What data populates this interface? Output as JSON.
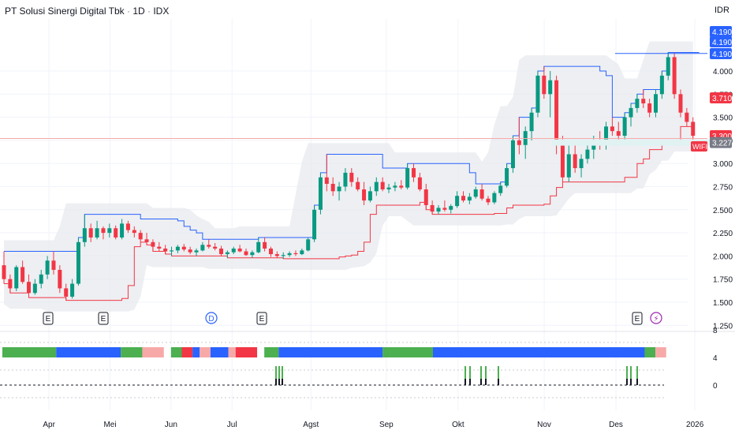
{
  "header": {
    "symbol": "PT Solusi Sinergi Digital Tbk",
    "interval": "1D",
    "exchange": "IDX",
    "separator": "·",
    "currency": "IDR"
  },
  "chart_data": {
    "type": "candlestick",
    "symbol": "WIFI",
    "y_ticks": [
      "4.000",
      "3.750",
      "3.500",
      "3.250",
      "3.000",
      "2.750",
      "2.500",
      "2.250",
      "2.000",
      "1.750",
      "1.500",
      "1.250"
    ],
    "y_tick_values": [
      4000,
      3750,
      3500,
      3250,
      3000,
      2750,
      2500,
      2250,
      2000,
      1750,
      1500,
      1250
    ],
    "ylim": [
      1250,
      4500
    ],
    "x_labels": [
      "Apr",
      "Mei",
      "Jun",
      "Jul",
      "Agst",
      "Sep",
      "Okt",
      "Nov",
      "Des",
      "2026"
    ],
    "price_tags": [
      {
        "label": "4.190",
        "value": 4190,
        "style": "blue"
      },
      {
        "label": "4.190",
        "value": 4190,
        "style": "blue"
      },
      {
        "label": "4.190",
        "value": 4190,
        "style": "blue"
      },
      {
        "label": "3.710",
        "value": 3710,
        "style": "red"
      },
      {
        "label": "3.300",
        "value": 3300,
        "style": "red"
      },
      {
        "label": "3.227",
        "value": 3227,
        "style": "gray"
      }
    ],
    "symbol_tag": "WIFI",
    "event_markers": [
      {
        "label": "E",
        "kind": "earnings"
      },
      {
        "label": "E",
        "kind": "earnings"
      },
      {
        "label": "D",
        "kind": "dividend"
      },
      {
        "label": "E",
        "kind": "earnings"
      },
      {
        "label": "E",
        "kind": "earnings"
      },
      {
        "label": "⚡",
        "kind": "upcoming"
      }
    ],
    "candles": [
      [
        1900,
        2050,
        1700,
        1750
      ],
      [
        1750,
        1800,
        1600,
        1650
      ],
      [
        1650,
        1900,
        1620,
        1880
      ],
      [
        1880,
        1950,
        1700,
        1720
      ],
      [
        1720,
        1800,
        1550,
        1600
      ],
      [
        1600,
        1750,
        1580,
        1700
      ],
      [
        1700,
        1850,
        1650,
        1800
      ],
      [
        1800,
        2000,
        1750,
        1950
      ],
      [
        1950,
        2050,
        1800,
        1850
      ],
      [
        1850,
        1900,
        1600,
        1650
      ],
      [
        1650,
        1700,
        1520,
        1560
      ],
      [
        1560,
        1750,
        1540,
        1700
      ],
      [
        1700,
        2200,
        1680,
        2150
      ],
      [
        2150,
        2450,
        2100,
        2300
      ],
      [
        2300,
        2350,
        2150,
        2200
      ],
      [
        2200,
        2380,
        2180,
        2300
      ],
      [
        2300,
        2320,
        2180,
        2250
      ],
      [
        2250,
        2350,
        2200,
        2300
      ],
      [
        2300,
        2330,
        2180,
        2200
      ],
      [
        2200,
        2400,
        2180,
        2350
      ],
      [
        2350,
        2380,
        2250,
        2280
      ],
      [
        2280,
        2320,
        2200,
        2250
      ],
      [
        2250,
        2280,
        2150,
        2180
      ],
      [
        2180,
        2250,
        2120,
        2150
      ],
      [
        2150,
        2180,
        2050,
        2100
      ],
      [
        2100,
        2150,
        2050,
        2080
      ],
      [
        2080,
        2120,
        2020,
        2050
      ],
      [
        2050,
        2100,
        2000,
        2060
      ],
      [
        2060,
        2120,
        2030,
        2100
      ],
      [
        2100,
        2130,
        2050,
        2070
      ],
      [
        2070,
        2100,
        2020,
        2040
      ],
      [
        2040,
        2080,
        2000,
        2060
      ],
      [
        2060,
        2150,
        2050,
        2120
      ],
      [
        2120,
        2180,
        2080,
        2100
      ],
      [
        2100,
        2140,
        2060,
        2080
      ],
      [
        2080,
        2110,
        2000,
        2020
      ],
      [
        2020,
        2060,
        1980,
        2040
      ],
      [
        2040,
        2100,
        2020,
        2080
      ],
      [
        2080,
        2120,
        2040,
        2050
      ],
      [
        2050,
        2080,
        2000,
        2010
      ],
      [
        2010,
        2060,
        1980,
        2040
      ],
      [
        2040,
        2200,
        2030,
        2150
      ],
      [
        2150,
        2200,
        2050,
        2080
      ],
      [
        2080,
        2100,
        1990,
        2020
      ],
      [
        2020,
        2050,
        1980,
        2000
      ],
      [
        2000,
        2040,
        1970,
        2010
      ],
      [
        2010,
        2050,
        1990,
        2030
      ],
      [
        2030,
        2060,
        2000,
        2020
      ],
      [
        2020,
        2080,
        2010,
        2060
      ],
      [
        2060,
        2200,
        2050,
        2180
      ],
      [
        2180,
        2550,
        2150,
        2500
      ],
      [
        2500,
        2900,
        2450,
        2850
      ],
      [
        2850,
        3100,
        2700,
        2780
      ],
      [
        2780,
        2850,
        2650,
        2700
      ],
      [
        2700,
        2800,
        2600,
        2750
      ],
      [
        2750,
        2950,
        2700,
        2900
      ],
      [
        2900,
        2950,
        2750,
        2800
      ],
      [
        2800,
        2850,
        2700,
        2720
      ],
      [
        2720,
        2800,
        2550,
        2600
      ],
      [
        2600,
        2750,
        2580,
        2700
      ],
      [
        2700,
        2850,
        2650,
        2800
      ],
      [
        2800,
        2850,
        2700,
        2720
      ],
      [
        2720,
        2780,
        2680,
        2740
      ],
      [
        2740,
        2800,
        2700,
        2760
      ],
      [
        2760,
        2820,
        2720,
        2740
      ],
      [
        2740,
        3000,
        2720,
        2950
      ],
      [
        2950,
        3000,
        2800,
        2850
      ],
      [
        2850,
        2900,
        2700,
        2720
      ],
      [
        2720,
        2780,
        2500,
        2550
      ],
      [
        2550,
        2600,
        2450,
        2480
      ],
      [
        2480,
        2550,
        2450,
        2520
      ],
      [
        2520,
        2600,
        2480,
        2500
      ],
      [
        2500,
        2560,
        2460,
        2540
      ],
      [
        2540,
        2700,
        2520,
        2650
      ],
      [
        2650,
        2700,
        2580,
        2600
      ],
      [
        2600,
        2680,
        2560,
        2640
      ],
      [
        2640,
        2750,
        2620,
        2720
      ],
      [
        2720,
        2780,
        2600,
        2620
      ],
      [
        2620,
        2650,
        2550,
        2580
      ],
      [
        2580,
        2700,
        2560,
        2680
      ],
      [
        2680,
        2800,
        2650,
        2760
      ],
      [
        2760,
        3000,
        2740,
        2950
      ],
      [
        2950,
        3300,
        2900,
        3250
      ],
      [
        3250,
        3500,
        3100,
        3200
      ],
      [
        3200,
        3400,
        3050,
        3350
      ],
      [
        3350,
        3600,
        3250,
        3550
      ],
      [
        3550,
        4000,
        3500,
        3950
      ],
      [
        3950,
        4050,
        3700,
        3750
      ],
      [
        3750,
        4000,
        3500,
        3900
      ],
      [
        3900,
        3950,
        3100,
        3200
      ],
      [
        3200,
        3300,
        2800,
        2850
      ],
      [
        2850,
        3200,
        2800,
        3100
      ],
      [
        3100,
        3200,
        2900,
        2950
      ],
      [
        2950,
        3100,
        2850,
        3050
      ],
      [
        3050,
        3200,
        3000,
        3150
      ],
      [
        3150,
        3300,
        3050,
        3250
      ],
      [
        3250,
        3350,
        3150,
        3200
      ],
      [
        3200,
        3450,
        3150,
        3400
      ],
      [
        3400,
        3500,
        3300,
        3350
      ],
      [
        3350,
        3450,
        3250,
        3300
      ],
      [
        3300,
        3550,
        3250,
        3500
      ],
      [
        3500,
        3650,
        3400,
        3600
      ],
      [
        3600,
        3750,
        3550,
        3700
      ],
      [
        3700,
        3800,
        3600,
        3650
      ],
      [
        3650,
        3700,
        3500,
        3550
      ],
      [
        3550,
        3800,
        3500,
        3750
      ],
      [
        3750,
        4000,
        3700,
        3950
      ],
      [
        3950,
        4200,
        3900,
        4150
      ],
      [
        4150,
        4200,
        3700,
        3750
      ],
      [
        3750,
        3800,
        3500,
        3550
      ],
      [
        3550,
        3600,
        3400,
        3450
      ],
      [
        3450,
        3500,
        3250,
        3300
      ]
    ],
    "n_slots": 190,
    "x_label_slots": [
      13,
      30,
      47,
      64,
      86,
      107,
      127,
      151,
      171,
      193
    ],
    "candle_start_slot": 0,
    "candle_step": 1.73,
    "regime_bar": [
      {
        "from": 0,
        "to": 15,
        "color": "green"
      },
      {
        "from": 15,
        "to": 33,
        "color": "blue"
      },
      {
        "from": 33,
        "to": 39,
        "color": "green"
      },
      {
        "from": 39,
        "to": 45,
        "color": "pink"
      },
      {
        "from": 47,
        "to": 50,
        "color": "green"
      },
      {
        "from": 50,
        "to": 53,
        "color": "red"
      },
      {
        "from": 53,
        "to": 55,
        "color": "blue"
      },
      {
        "from": 55,
        "to": 58,
        "color": "pink"
      },
      {
        "from": 58,
        "to": 63,
        "color": "blue"
      },
      {
        "from": 63,
        "to": 65,
        "color": "pink"
      },
      {
        "from": 65,
        "to": 71,
        "color": "red"
      },
      {
        "from": 73,
        "to": 77,
        "color": "green"
      },
      {
        "from": 77,
        "to": 106,
        "color": "blue"
      },
      {
        "from": 106,
        "to": 120,
        "color": "green"
      },
      {
        "from": 120,
        "to": 150,
        "color": "blue"
      },
      {
        "from": 150,
        "to": 179,
        "color": "blue"
      },
      {
        "from": 179,
        "to": 182,
        "color": "green"
      },
      {
        "from": 182,
        "to": 185,
        "color": "pink"
      }
    ],
    "indicator_ticks": [
      "8",
      "4",
      "0"
    ],
    "palette": {
      "up": "#089981",
      "down": "#f23645",
      "blue_line": "#2962ff",
      "red_line": "#f23645",
      "band": "#e6e8ec",
      "grid": "#f0f3fa",
      "regime_green": "#4caf50",
      "regime_blue": "#2962ff",
      "regime_pink": "#f7a9a8",
      "regime_red": "#f23645"
    }
  }
}
